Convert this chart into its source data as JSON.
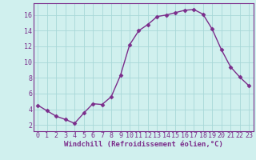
{
  "x": [
    0,
    1,
    2,
    3,
    4,
    5,
    6,
    7,
    8,
    9,
    10,
    11,
    12,
    13,
    14,
    15,
    16,
    17,
    18,
    19,
    20,
    21,
    22,
    23
  ],
  "y": [
    4.5,
    3.8,
    3.1,
    2.7,
    2.2,
    3.5,
    4.7,
    4.6,
    5.6,
    8.3,
    12.2,
    14.0,
    14.8,
    15.8,
    16.0,
    16.3,
    16.6,
    16.7,
    16.1,
    14.2,
    11.6,
    9.4,
    8.1,
    7.0
  ],
  "line_color": "#7b2d8b",
  "marker": "D",
  "marker_size": 2.5,
  "marker_linewidth": 0.5,
  "line_width": 1.0,
  "bg_color": "#d0f0ee",
  "grid_color": "#a8d8d8",
  "xlabel": "Windchill (Refroidissement éolien,°C)",
  "xlabel_fontsize": 6.5,
  "xtick_labels": [
    "0",
    "1",
    "2",
    "3",
    "4",
    "5",
    "6",
    "7",
    "8",
    "9",
    "10",
    "11",
    "12",
    "13",
    "14",
    "15",
    "16",
    "17",
    "18",
    "19",
    "20",
    "21",
    "22",
    "23"
  ],
  "ytick_vals": [
    2,
    4,
    6,
    8,
    10,
    12,
    14,
    16
  ],
  "ylim": [
    1.2,
    17.5
  ],
  "xlim": [
    -0.5,
    23.5
  ],
  "tick_color": "#7b2d8b",
  "tick_fontsize": 6,
  "axis_label_color": "#7b2d8b",
  "spine_color": "#7b2d8b"
}
